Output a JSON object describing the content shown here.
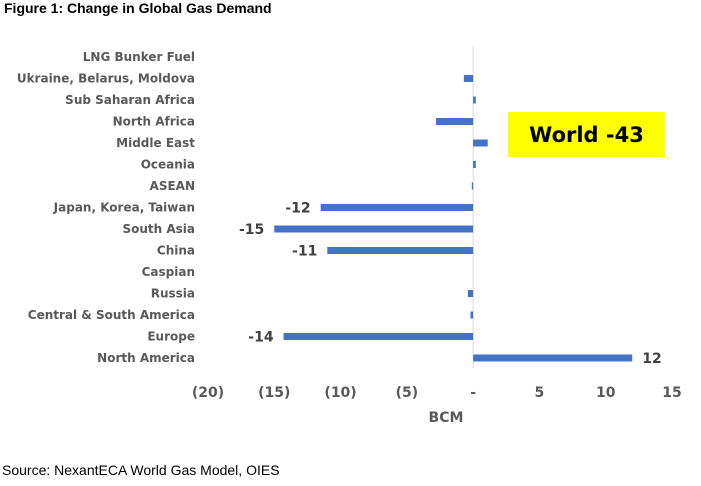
{
  "figure_title": "Figure 1: Change in Global Gas Demand",
  "source": "Source: NexantECA World Gas Model, OIES",
  "callout": "World -43",
  "colors": {
    "bar": "#4472C4",
    "callout_bg": "#FFFF00"
  },
  "chart_data": {
    "type": "bar",
    "orientation": "horizontal",
    "title": "Figure 1: Change in Global Gas Demand",
    "xlabel": "BCM",
    "ylabel": "",
    "xlim": [
      -20,
      15
    ],
    "x_ticks": [
      -20,
      -15,
      -10,
      -5,
      0,
      5,
      10,
      15
    ],
    "x_tick_labels": [
      "(20)",
      "(15)",
      "(10)",
      "(5)",
      "-",
      "5",
      "10",
      "15"
    ],
    "categories": [
      "LNG Bunker Fuel",
      "Ukraine, Belarus, Moldova",
      "Sub Saharan Africa",
      "North Africa",
      "Middle East",
      "Oceania",
      "ASEAN",
      "Japan, Korea, Taiwan",
      "South Asia",
      "China",
      "Caspian",
      "Russia",
      "Central & South America",
      "Europe",
      "North America"
    ],
    "values": [
      0,
      -0.7,
      0.2,
      -2.8,
      1.1,
      0.2,
      -0.1,
      -11.5,
      -15,
      -11,
      0,
      -0.4,
      -0.2,
      -14.3,
      12
    ],
    "data_labels": [
      "",
      "",
      "",
      "",
      "",
      "",
      "",
      "-12",
      "-15",
      "-11",
      "",
      "",
      "",
      "-14",
      "12"
    ]
  }
}
